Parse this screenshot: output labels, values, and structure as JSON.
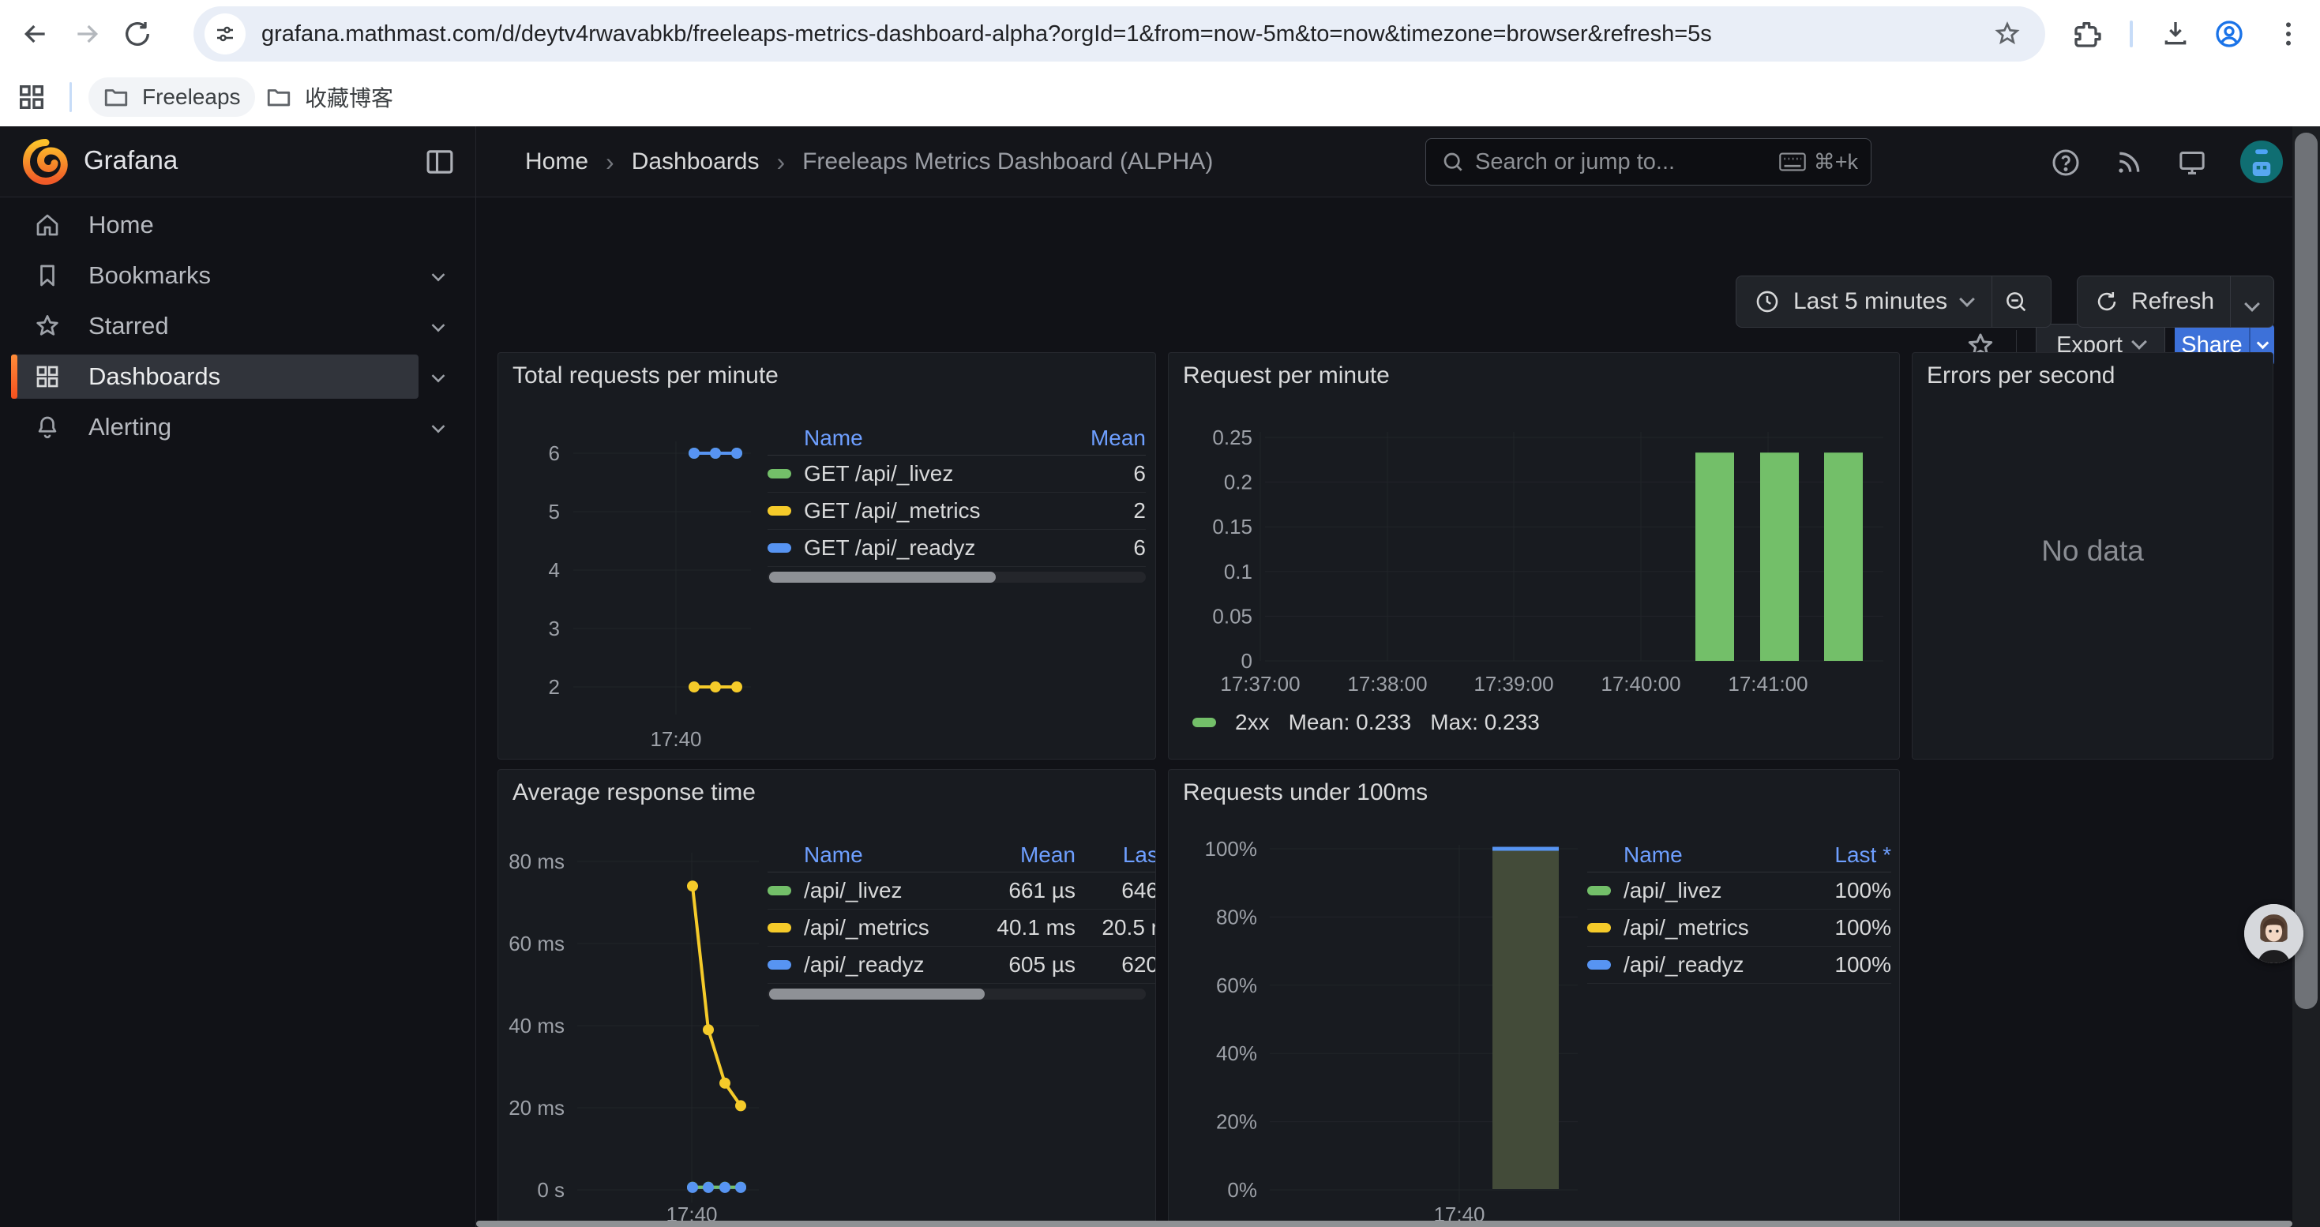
{
  "browser": {
    "url": "grafana.mathmast.com/d/deytv4rwavabkb/freeleaps-metrics-dashboard-alpha?orgId=1&from=now-5m&to=now&timezone=browser&refresh=5s",
    "bookmarks": [
      {
        "label": "Freeleaps"
      },
      {
        "label": "收藏博客"
      }
    ]
  },
  "nav": {
    "brand": "Grafana",
    "breadcrumb": [
      "Home",
      "Dashboards",
      "Freeleaps Metrics Dashboard (ALPHA)"
    ],
    "separator": "›",
    "search_placeholder": "Search or jump to...",
    "search_shortcut": "⌘+k",
    "export_label": "Export",
    "share_label": "Share",
    "time_range_label": "Last 5 minutes",
    "refresh_label": "Refresh"
  },
  "sidebar": {
    "items": [
      {
        "label": "Home"
      },
      {
        "label": "Bookmarks"
      },
      {
        "label": "Starred"
      },
      {
        "label": "Dashboards"
      },
      {
        "label": "Alerting"
      }
    ]
  },
  "colors": {
    "green": "#73bf69",
    "yellow": "#f5cb2a",
    "blue": "#5794f2",
    "header_blue": "#6e9fff",
    "share_blue": "#3d71d9",
    "bar_fill_olive": "#434b39"
  },
  "chart_data": [
    {
      "type": "line",
      "title": "Total requests per minute",
      "yticks": [
        "6",
        "5",
        "4",
        "3",
        "2"
      ],
      "ylim": [
        2,
        6
      ],
      "xlabel": "17:40",
      "table": {
        "headers": [
          "Name",
          "Mean"
        ],
        "rows": [
          {
            "name": "GET /api/_livez",
            "mean": "6",
            "color": "#73bf69",
            "values": [
              6,
              6,
              6
            ]
          },
          {
            "name": "GET /api/_metrics",
            "mean": "2",
            "color": "#f5cb2a",
            "values": [
              2,
              2,
              2
            ]
          },
          {
            "name": "GET /api/_readyz",
            "mean": "6",
            "color": "#5794f2",
            "values": [
              6,
              6,
              6
            ]
          }
        ]
      }
    },
    {
      "type": "bar",
      "title": "Request per minute",
      "yticks": [
        "0.25",
        "0.2",
        "0.15",
        "0.1",
        "0.05",
        "0"
      ],
      "ylim": [
        0,
        0.25
      ],
      "xticks": [
        "17:37:00",
        "17:38:00",
        "17:39:00",
        "17:40:00",
        "17:41:00"
      ],
      "series": [
        {
          "name": "2xx",
          "color": "#73bf69",
          "values": [
            0.233,
            0.233,
            0.233
          ]
        }
      ],
      "legend": {
        "label": "2xx",
        "mean_text": "Mean: 0.233",
        "max_text": "Max: 0.233"
      }
    },
    {
      "type": "none",
      "title": "Errors per second",
      "message": "No data"
    },
    {
      "type": "line",
      "title": "Average response time",
      "yticks": [
        "80 ms",
        "60 ms",
        "40 ms",
        "20 ms",
        "0 s"
      ],
      "ylim_ms": [
        0,
        80
      ],
      "xlabel": "17:40",
      "table": {
        "headers": [
          "Name",
          "Mean",
          "Las"
        ],
        "rows": [
          {
            "name": "/api/_livez",
            "mean": "661 µs",
            "last": "646",
            "color": "#73bf69",
            "values_ms": [
              0.66,
              0.66,
              0.66,
              0.66
            ]
          },
          {
            "name": "/api/_metrics",
            "mean": "40.1 ms",
            "last": "20.5 r",
            "color": "#f5cb2a",
            "values_ms": [
              74,
              39,
              26,
              20.5
            ]
          },
          {
            "name": "/api/_readyz",
            "mean": "605 µs",
            "last": "620",
            "color": "#5794f2",
            "values_ms": [
              0.6,
              0.6,
              0.6,
              0.6
            ]
          }
        ]
      }
    },
    {
      "type": "bar",
      "title": "Requests under 100ms",
      "yticks": [
        "100%",
        "80%",
        "60%",
        "40%",
        "20%",
        "0%"
      ],
      "ylim_pct": [
        0,
        100
      ],
      "xlabel": "17:40",
      "bar": {
        "value_pct": 100,
        "fill": "#434b39",
        "top_color": "#5794f2"
      },
      "table": {
        "headers": [
          "Name",
          "Last *"
        ],
        "rows": [
          {
            "name": "/api/_livez",
            "last": "100%",
            "color": "#73bf69"
          },
          {
            "name": "/api/_metrics",
            "last": "100%",
            "color": "#f5cb2a"
          },
          {
            "name": "/api/_readyz",
            "last": "100%",
            "color": "#5794f2"
          }
        ]
      }
    }
  ]
}
